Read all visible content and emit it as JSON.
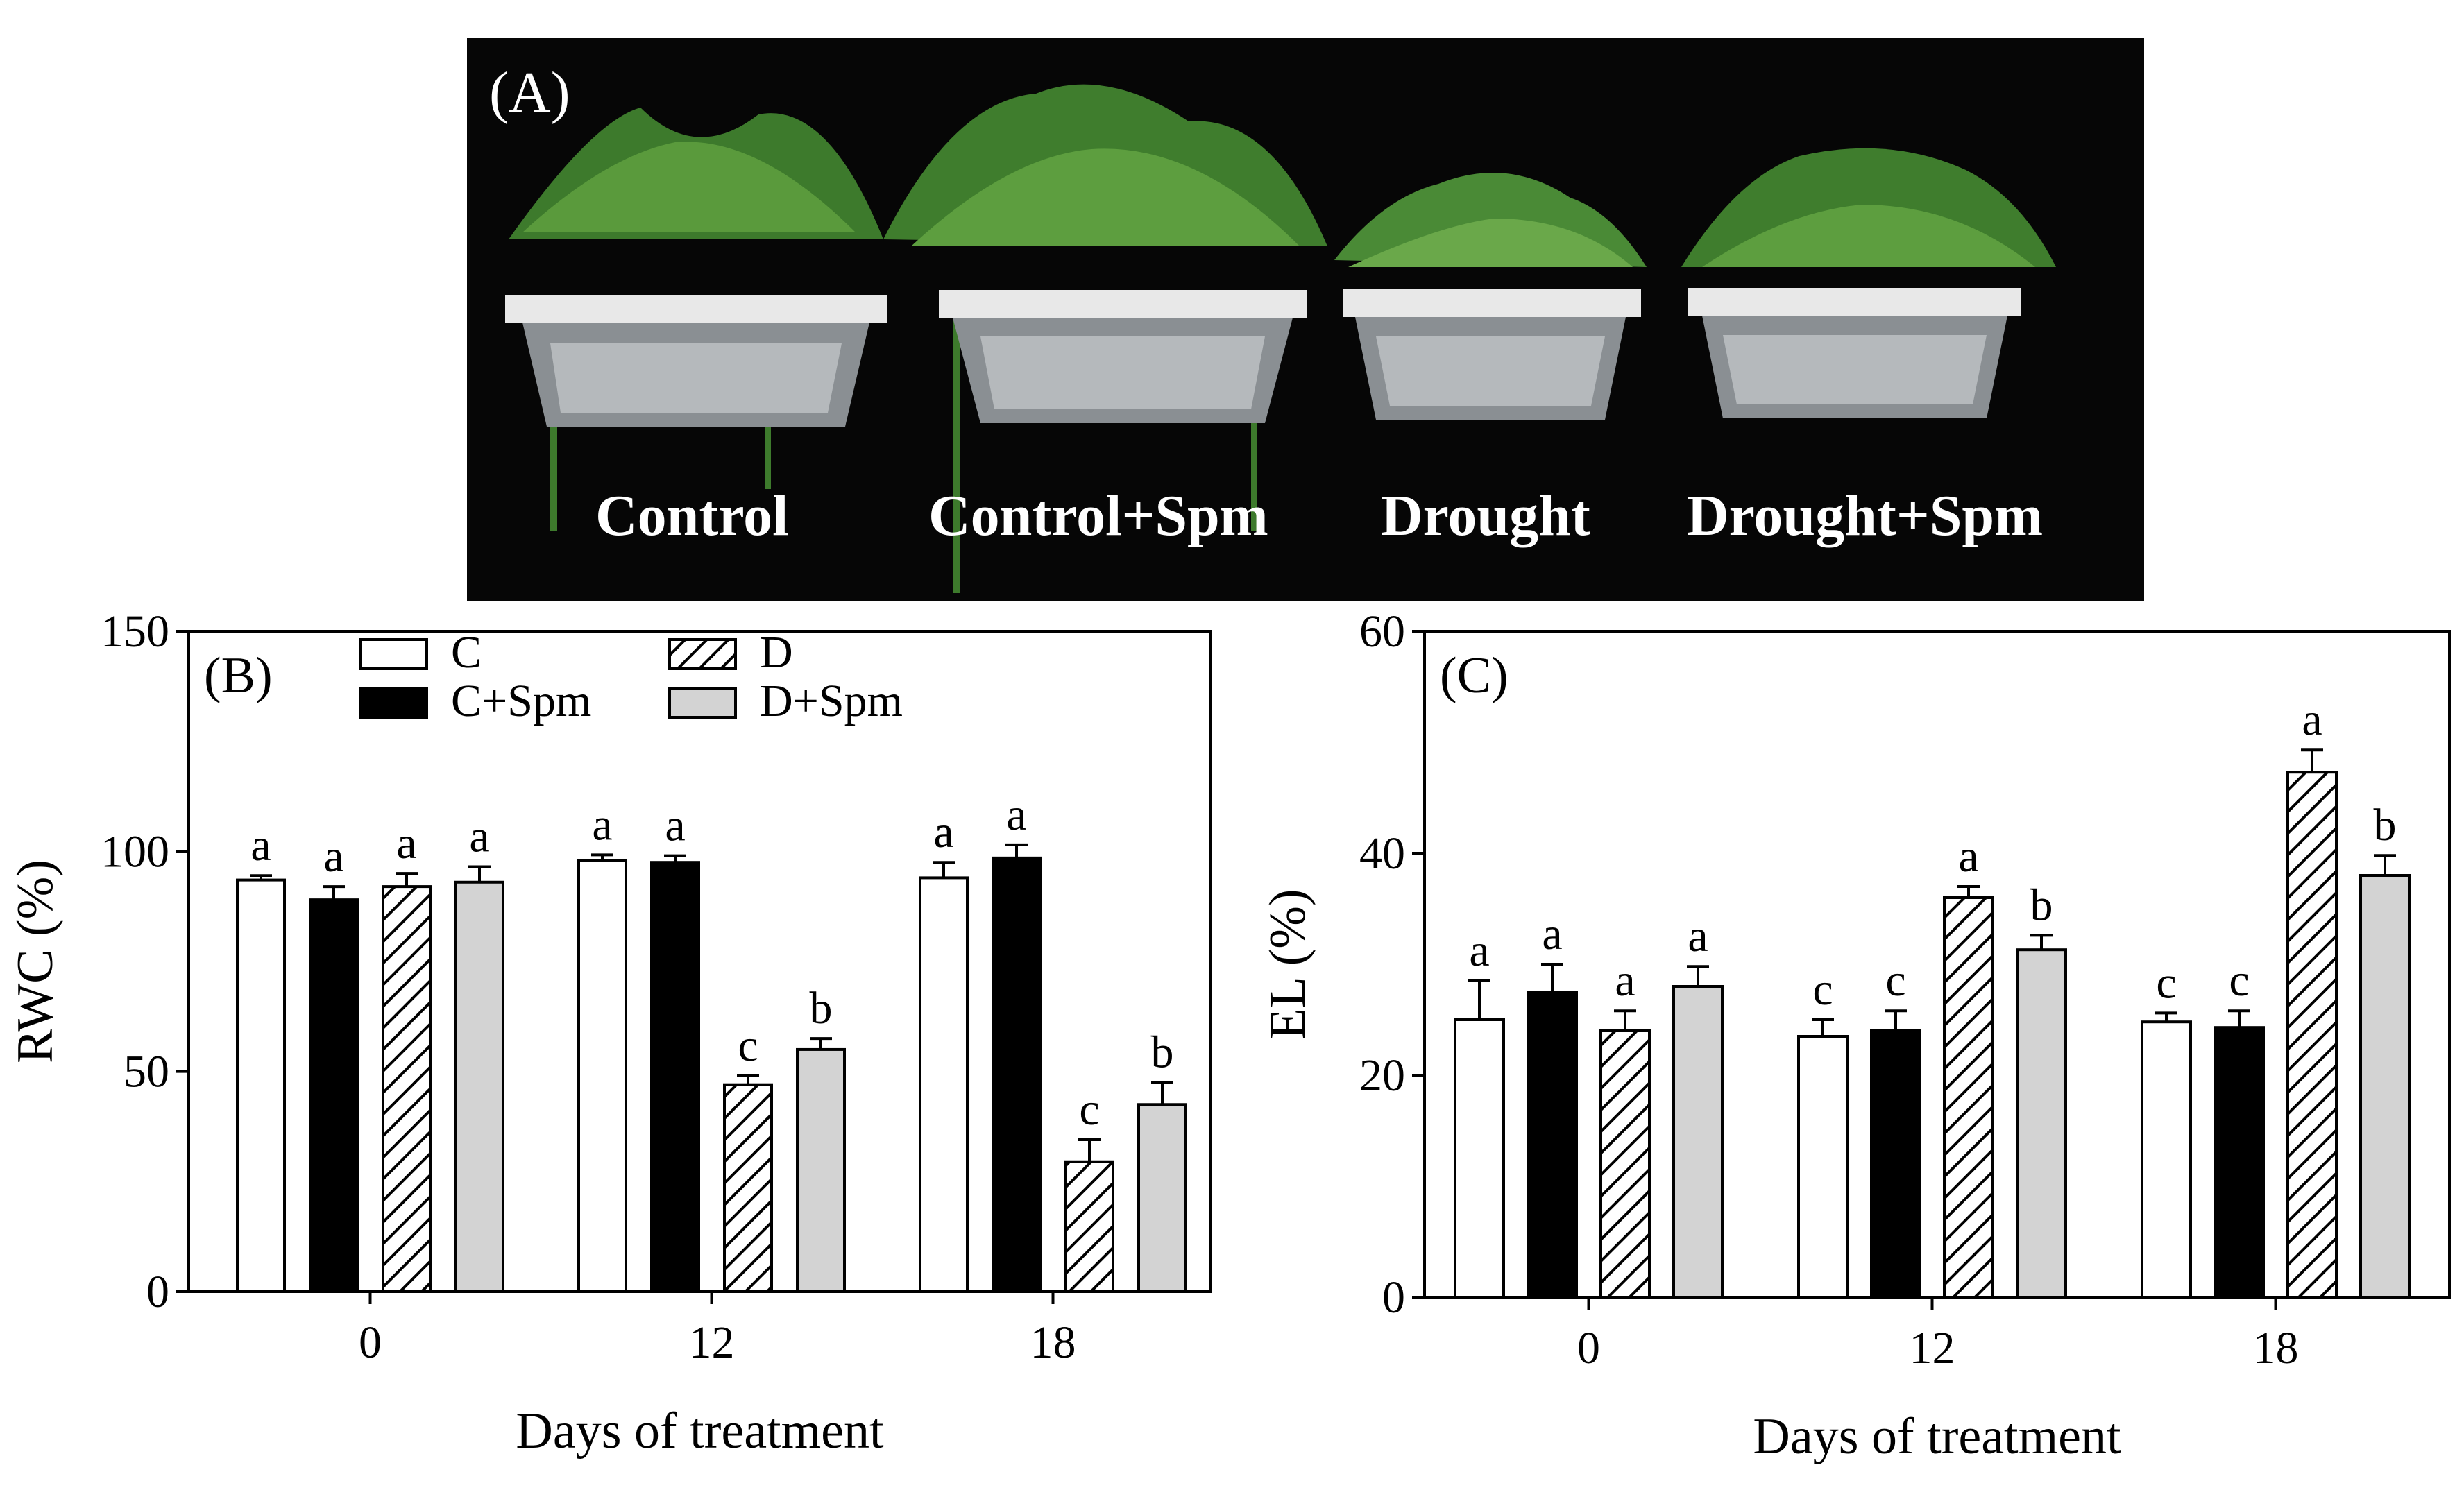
{
  "panel_a": {
    "label": "(A)",
    "pots": [
      "Control",
      "Control+Spm",
      "Drought",
      "Drought+Spm"
    ]
  },
  "chart_data": [
    {
      "type": "bar",
      "panel_label": "(B)",
      "xlabel": "Days of treatment",
      "ylabel": "RWC (%)",
      "categories": [
        "0",
        "12",
        "18"
      ],
      "ylim": [
        0,
        150
      ],
      "yticks": [
        0,
        50,
        100,
        150
      ],
      "legend_placement": "top-left",
      "series": [
        {
          "name": "C",
          "fill": "white",
          "values": [
            93.5,
            98,
            94
          ],
          "errors": [
            1,
            1.2,
            3.5
          ],
          "letters": [
            "a",
            "a",
            "a"
          ]
        },
        {
          "name": "C+Spm",
          "fill": "black",
          "values": [
            89,
            97.5,
            98.5
          ],
          "errors": [
            3,
            1.5,
            3
          ],
          "letters": [
            "a",
            "a",
            "a"
          ]
        },
        {
          "name": "D",
          "fill": "hatch",
          "values": [
            92,
            47,
            29.5
          ],
          "errors": [
            3,
            2,
            5
          ],
          "letters": [
            "a",
            "c",
            "c"
          ]
        },
        {
          "name": "D+Spm",
          "fill": "gray",
          "values": [
            93,
            55,
            42.5
          ],
          "errors": [
            3.5,
            2.5,
            5
          ],
          "letters": [
            "a",
            "b",
            "b"
          ]
        }
      ]
    },
    {
      "type": "bar",
      "panel_label": "(C)",
      "xlabel": "Days of treatment",
      "ylabel": "EL (%)",
      "categories": [
        "0",
        "12",
        "18"
      ],
      "ylim": [
        0,
        60
      ],
      "yticks": [
        0,
        20,
        40,
        60
      ],
      "series": [
        {
          "name": "C",
          "fill": "white",
          "values": [
            25,
            23.5,
            24.8
          ],
          "errors": [
            3.5,
            1.5,
            0.8
          ],
          "letters": [
            "a",
            "c",
            "c"
          ]
        },
        {
          "name": "C+Spm",
          "fill": "black",
          "values": [
            27.5,
            24,
            24.3
          ],
          "errors": [
            2.5,
            1.8,
            1.5
          ],
          "letters": [
            "a",
            "c",
            "c"
          ]
        },
        {
          "name": "D",
          "fill": "hatch",
          "values": [
            24,
            36,
            47.3
          ],
          "errors": [
            1.8,
            1,
            2
          ],
          "letters": [
            "a",
            "a",
            "a"
          ]
        },
        {
          "name": "D+Spm",
          "fill": "gray",
          "values": [
            28,
            31.3,
            38
          ],
          "errors": [
            1.8,
            1.3,
            1.8
          ],
          "letters": [
            "a",
            "b",
            "b"
          ]
        }
      ]
    }
  ]
}
